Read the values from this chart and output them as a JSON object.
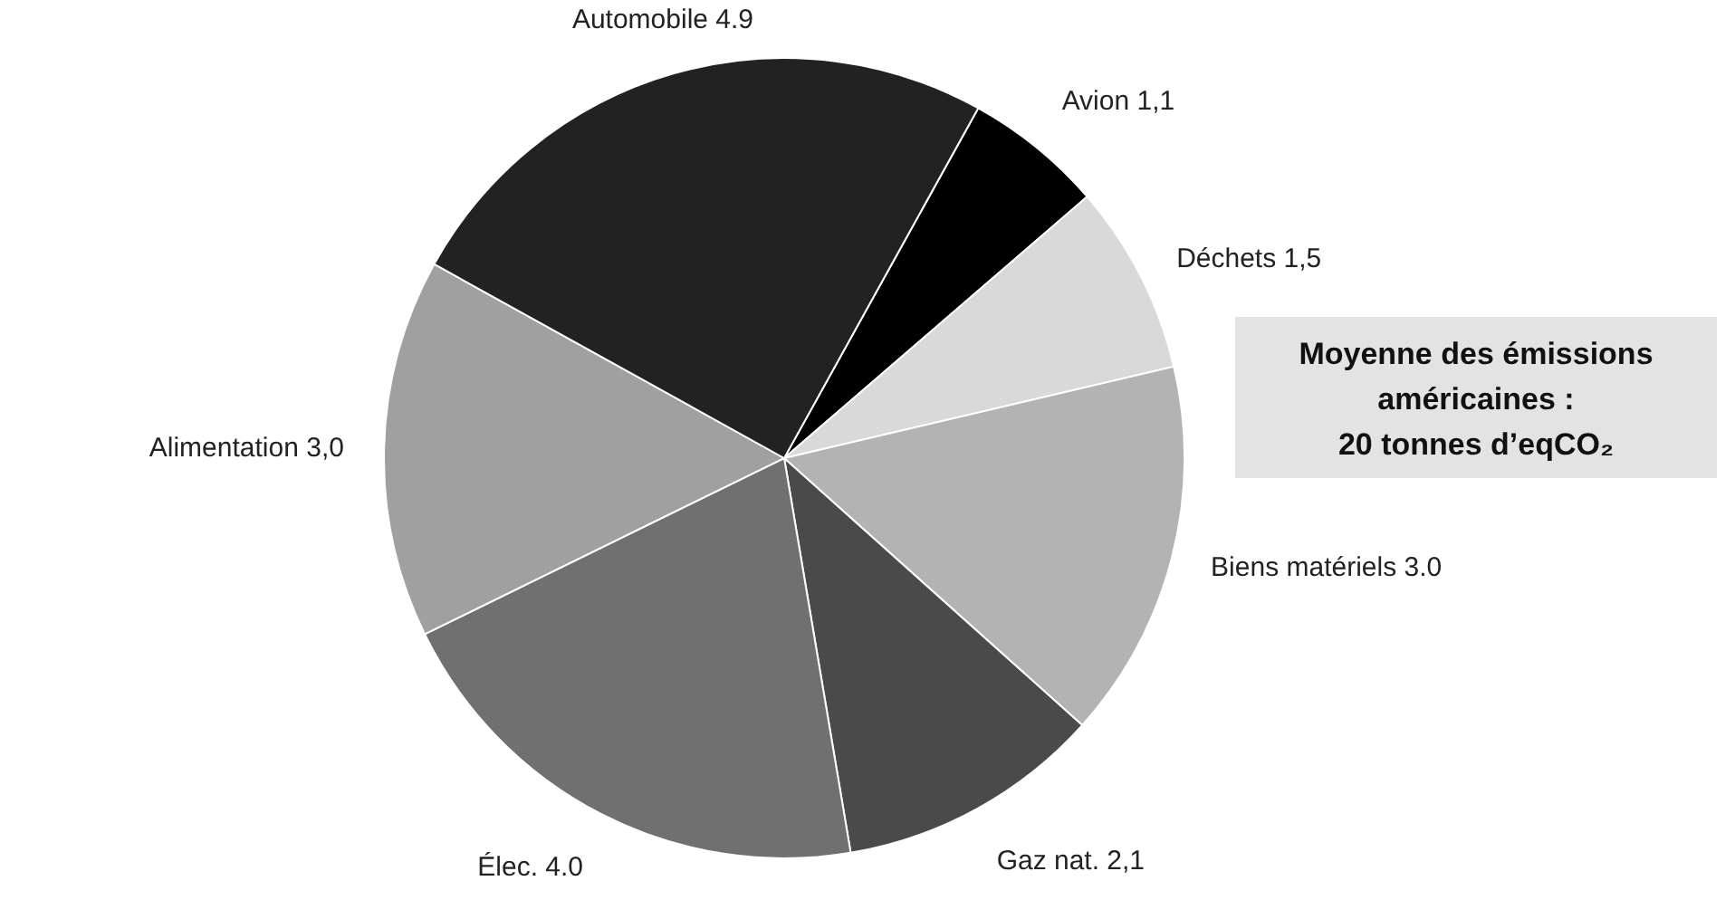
{
  "chart_data": {
    "type": "pie",
    "categories": [
      "Avion",
      "Déchets",
      "Biens matériels",
      "Gaz nat.",
      "Élec.",
      "Alimentation",
      "Automobile"
    ],
    "values": [
      1.1,
      1.5,
      3.0,
      2.1,
      4.0,
      3.0,
      4.9
    ],
    "value_labels": [
      "1,1",
      "1,5",
      "3.0",
      "2,1",
      "4.0",
      "3,0",
      "4.9"
    ],
    "colors": [
      "#000000",
      "#d9d9d9",
      "#b3b3b3",
      "#4a4a4a",
      "#707070",
      "#a0a0a0",
      "#222222"
    ],
    "annotations": [
      "Moyenne des émissions\naméricaines :\n20 tonnes d’eqCO₂"
    ]
  }
}
